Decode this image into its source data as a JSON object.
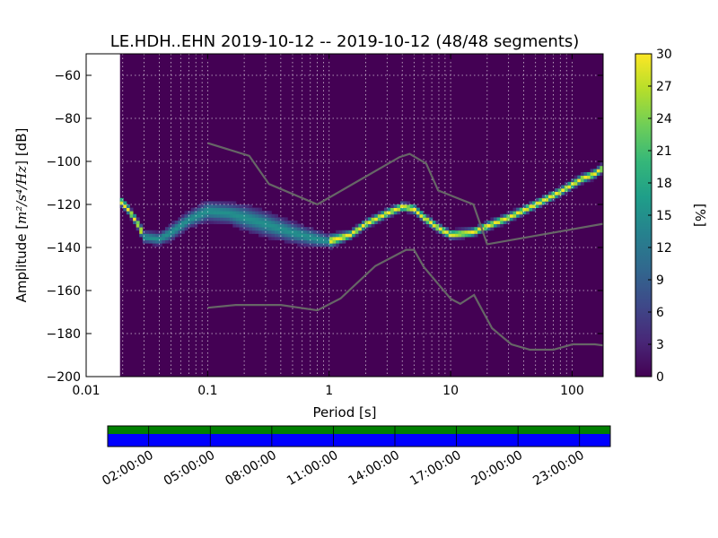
{
  "chart_data": {
    "type": "heatmap",
    "title": "LE.HDH..EHN   2019-10-12 -- 2019-10-12  (48/48 segments)",
    "xlabel": "Period [s]",
    "ylabel_prefix": "Amplitude [",
    "ylabel_units": "m²/s⁴/Hz",
    "ylabel_suffix": "] [dB]",
    "x_scale": "log",
    "xlim": [
      0.01,
      180
    ],
    "ylim": [
      -200,
      -50
    ],
    "grid": true,
    "x_ticks": [
      {
        "value": 0.01,
        "label": "0.01"
      },
      {
        "value": 0.1,
        "label": "0.1"
      },
      {
        "value": 1,
        "label": "1"
      },
      {
        "value": 10,
        "label": "10"
      },
      {
        "value": 100,
        "label": "100"
      }
    ],
    "y_ticks": [
      {
        "value": -60,
        "label": "−60"
      },
      {
        "value": -80,
        "label": "−80"
      },
      {
        "value": -100,
        "label": "−100"
      },
      {
        "value": -120,
        "label": "−120"
      },
      {
        "value": -140,
        "label": "−140"
      },
      {
        "value": -160,
        "label": "−160"
      },
      {
        "value": -180,
        "label": "−180"
      },
      {
        "value": -200,
        "label": "−200"
      }
    ],
    "data_min_period": 0.019,
    "psd_mode": {
      "period": [
        0.019,
        0.022,
        0.026,
        0.03,
        0.04,
        0.05,
        0.07,
        0.1,
        0.15,
        0.2,
        0.3,
        0.5,
        0.8,
        1.0,
        1.5,
        2.0,
        3.0,
        4.0,
        5.0,
        6.0,
        8.0,
        10.0,
        15.0,
        20.0,
        30.0,
        50.0,
        80.0,
        120.0,
        150.0,
        180.0
      ],
      "db": [
        -118,
        -122,
        -128,
        -135,
        -136,
        -133,
        -127,
        -123,
        -124,
        -126,
        -129,
        -133,
        -136,
        -137,
        -134,
        -129,
        -124,
        -121,
        -122,
        -126,
        -131,
        -134,
        -133,
        -130,
        -126,
        -120,
        -114,
        -108,
        -106,
        -103
      ],
      "spread": [
        2,
        2,
        2,
        3,
        3,
        4,
        4,
        5,
        5,
        6,
        6,
        5,
        4,
        3,
        2,
        2,
        2,
        2,
        2,
        2,
        2,
        2,
        2,
        2,
        2,
        2,
        2,
        2,
        2,
        2
      ]
    },
    "nhnm": {
      "period": [
        0.1,
        0.22,
        0.32,
        0.8,
        3.8,
        4.6,
        6.3,
        7.9,
        15.4,
        20,
        180
      ],
      "db": [
        -91.5,
        -97.4,
        -110.5,
        -120,
        -98,
        -96.5,
        -101,
        -113.5,
        -120,
        -138.5,
        -129
      ]
    },
    "nlnm": {
      "period": [
        0.1,
        0.17,
        0.4,
        0.8,
        1.24,
        2.4,
        4.3,
        5.0,
        6.0,
        10.0,
        12.0,
        15.6,
        21.9,
        31.6,
        45,
        70,
        101,
        154,
        180
      ],
      "db": [
        -168,
        -166.7,
        -166.7,
        -169.2,
        -163.7,
        -148.6,
        -141.1,
        -141.1,
        -149,
        -163.8,
        -166.2,
        -162.1,
        -177.5,
        -185,
        -187.5,
        -187.5,
        -185,
        -185,
        -185.5
      ]
    },
    "colorbar": {
      "label": "[%]",
      "min": 0,
      "max": 30,
      "ticks": [
        "0",
        "3",
        "6",
        "9",
        "12",
        "15",
        "18",
        "21",
        "24",
        "27",
        "30"
      ],
      "colors": [
        "#440154",
        "#482878",
        "#3e4989",
        "#31688e",
        "#26828e",
        "#1f9e89",
        "#35b779",
        "#6ece58",
        "#b5de2b",
        "#fde725"
      ]
    },
    "timeline": {
      "labels": [
        "02:00:00",
        "05:00:00",
        "08:00:00",
        "11:00:00",
        "14:00:00",
        "17:00:00",
        "20:00:00",
        "23:00:00"
      ],
      "top_color": "#008000",
      "bottom_color": "#0000ff"
    }
  }
}
